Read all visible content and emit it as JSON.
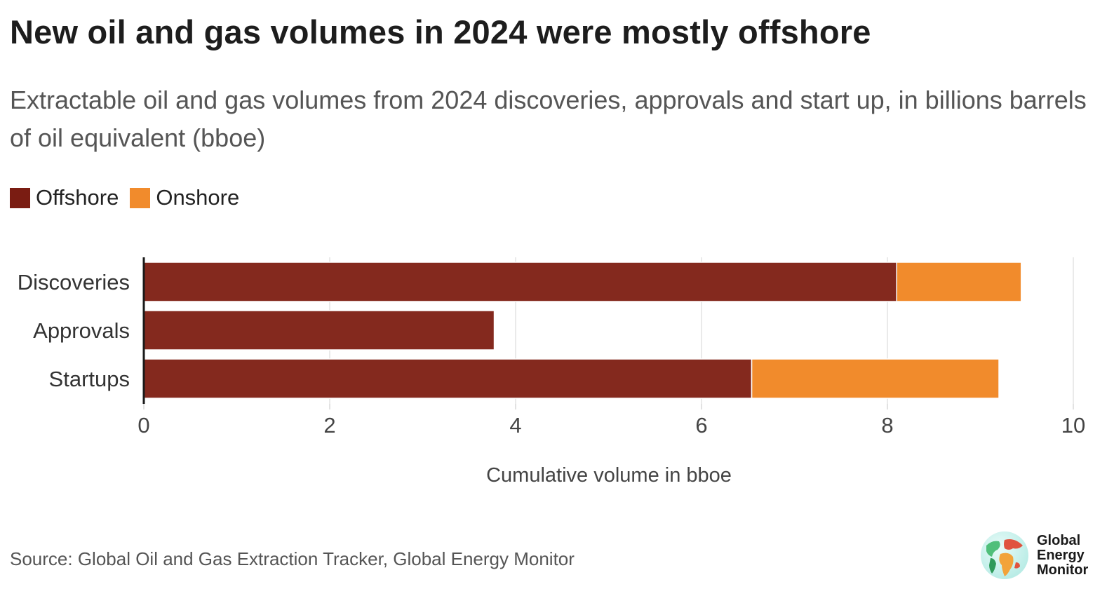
{
  "title": "New oil and gas volumes in 2024 were mostly offshore",
  "subtitle": "Extractable oil and gas volumes from 2024 discoveries, approvals and start up, in billions barrels of oil equivalent (bboe)",
  "legend": [
    {
      "label": "Offshore",
      "color": "#7a1c12"
    },
    {
      "label": "Onshore",
      "color": "#f18b2c"
    }
  ],
  "source": "Source: Global Oil and Gas Extraction Tracker, Global Energy Monitor",
  "logo": {
    "line1": "Global",
    "line2": "Energy",
    "line3": "Monitor"
  },
  "chart_data": {
    "type": "bar",
    "orientation": "horizontal",
    "stacked": true,
    "categories": [
      "Discoveries",
      "Approvals",
      "Startups"
    ],
    "series": [
      {
        "name": "Offshore",
        "color": "#84291e",
        "values": [
          8.1,
          3.77,
          6.54
        ]
      },
      {
        "name": "Onshore",
        "color": "#f18b2c",
        "values": [
          1.34,
          0.0,
          2.66
        ]
      }
    ],
    "xlabel": "Cumulative volume in bboe",
    "ylabel": "",
    "xlim": [
      0,
      10
    ],
    "xticks": [
      0,
      2,
      4,
      6,
      8,
      10
    ],
    "grid": true,
    "legend_position": "top-left"
  }
}
